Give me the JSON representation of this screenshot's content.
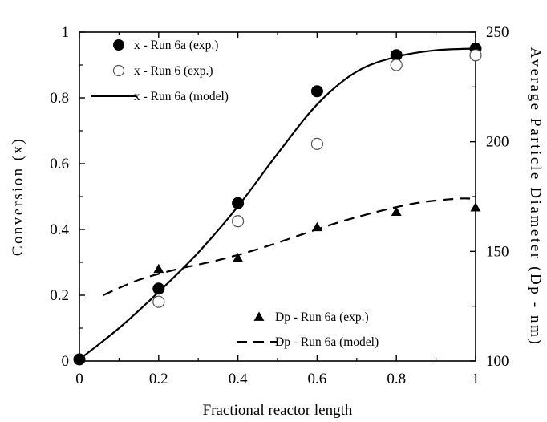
{
  "chart_data": {
    "type": "scatter",
    "title": "",
    "xlabel": "Fractional reactor length",
    "ylabel": "Conversion (x)",
    "y2label": "Average Particle Diameter (Dp - nm)",
    "xlim": [
      0,
      1
    ],
    "ylim": [
      0,
      1
    ],
    "y2lim": [
      100,
      250
    ],
    "grid": false,
    "x_ticks": [
      "0",
      "0.2",
      "0.4",
      "0.6",
      "0.8",
      "1"
    ],
    "y_ticks": [
      "0",
      "0.2",
      "0.4",
      "0.6",
      "0.8",
      "1"
    ],
    "y2_ticks": [
      "100",
      "150",
      "200",
      "250"
    ],
    "legend_upper": "top-left",
    "legend_lower": "bottom-right",
    "series": [
      {
        "name": "x - Run 6a (exp.)",
        "axis": "left",
        "style": "filled-circle",
        "x": [
          0,
          0.2,
          0.4,
          0.6,
          0.8,
          1.0
        ],
        "y": [
          0.005,
          0.22,
          0.48,
          0.82,
          0.93,
          0.95
        ]
      },
      {
        "name": "x - Run 6 (exp.)",
        "axis": "left",
        "style": "open-circle",
        "x": [
          0.2,
          0.4,
          0.6,
          0.8,
          1.0
        ],
        "y": [
          0.18,
          0.425,
          0.66,
          0.9,
          0.93
        ]
      },
      {
        "name": "x - Run 6a (model)",
        "axis": "left",
        "style": "solid-line",
        "x": [
          0,
          0.1,
          0.2,
          0.3,
          0.4,
          0.5,
          0.6,
          0.7,
          0.8,
          0.9,
          1.0
        ],
        "y": [
          0.005,
          0.1,
          0.21,
          0.33,
          0.47,
          0.63,
          0.78,
          0.88,
          0.925,
          0.945,
          0.95
        ]
      },
      {
        "name": "Dp - Run 6a (exp.)",
        "axis": "right",
        "style": "filled-triangle",
        "x": [
          0.2,
          0.4,
          0.6,
          0.8,
          1.0
        ],
        "y": [
          142,
          147,
          161,
          168,
          170
        ]
      },
      {
        "name": "Dp - Run 6a (model)",
        "axis": "right",
        "style": "dashed-line",
        "x": [
          0.06,
          0.15,
          0.25,
          0.35,
          0.45,
          0.55,
          0.65,
          0.75,
          0.85,
          0.95,
          1.0
        ],
        "y": [
          130,
          137,
          142,
          146,
          151,
          157,
          163,
          168,
          172,
          174,
          174
        ]
      }
    ]
  }
}
